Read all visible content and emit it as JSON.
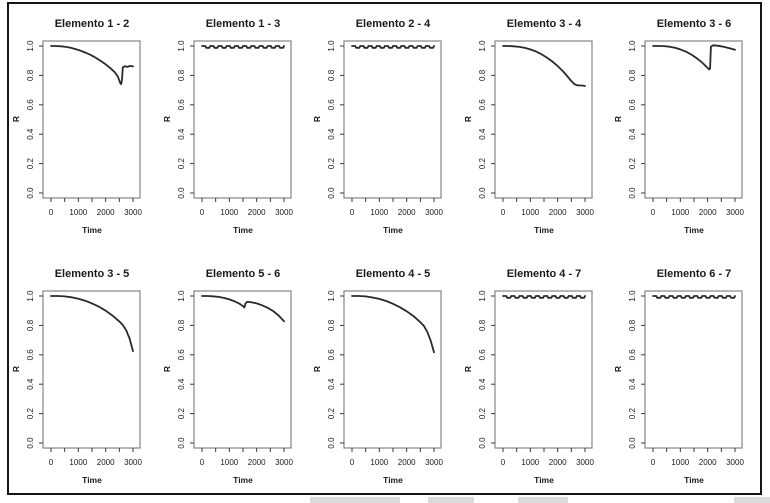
{
  "figure": {
    "background": "#ffffff",
    "frame_color": "#161616",
    "shadow_color": "#c9c9c9"
  },
  "chart_data": {
    "type": "line",
    "layout": {
      "rows": 2,
      "cols": 5
    },
    "xlabel": "Time",
    "ylabel": "R",
    "xlim": [
      0,
      3000
    ],
    "ylim": [
      0.0,
      1.0
    ],
    "xticks": [
      0,
      500,
      1000,
      1500,
      2000,
      2500,
      3000
    ],
    "xtick_labels": [
      "0",
      "",
      "1000",
      "",
      "2000",
      "",
      "3000"
    ],
    "yticks": [
      0.0,
      0.2,
      0.4,
      0.6,
      0.8,
      1.0
    ],
    "ytick_labels": [
      "0.0",
      "0.2",
      "0.4",
      "0.6",
      "0.8",
      "1.0"
    ],
    "grid": false,
    "legend": false,
    "line_color": "#2a2a2a",
    "box_color": "#858585",
    "tick_color": "#3a3a3a",
    "text_color": "#1a1a1a",
    "shared_series": {
      "flat": [
        [
          0,
          1.0
        ],
        [
          120,
          1.0
        ],
        [
          150,
          0.988
        ],
        [
          270,
          0.988
        ],
        [
          300,
          1.0
        ],
        [
          420,
          1.0
        ],
        [
          450,
          0.988
        ],
        [
          570,
          0.988
        ],
        [
          600,
          1.0
        ],
        [
          720,
          1.0
        ],
        [
          750,
          0.988
        ],
        [
          870,
          0.988
        ],
        [
          900,
          1.0
        ],
        [
          1020,
          1.0
        ],
        [
          1050,
          0.988
        ],
        [
          1170,
          0.988
        ],
        [
          1200,
          1.0
        ],
        [
          1320,
          1.0
        ],
        [
          1350,
          0.988
        ],
        [
          1470,
          0.988
        ],
        [
          1500,
          1.0
        ],
        [
          1620,
          1.0
        ],
        [
          1650,
          0.988
        ],
        [
          1770,
          0.988
        ],
        [
          1800,
          1.0
        ],
        [
          1920,
          1.0
        ],
        [
          1950,
          0.988
        ],
        [
          2070,
          0.988
        ],
        [
          2100,
          1.0
        ],
        [
          2220,
          1.0
        ],
        [
          2250,
          0.988
        ],
        [
          2370,
          0.988
        ],
        [
          2400,
          1.0
        ],
        [
          2520,
          1.0
        ],
        [
          2550,
          0.988
        ],
        [
          2670,
          0.988
        ],
        [
          2700,
          1.0
        ],
        [
          2820,
          1.0
        ],
        [
          2850,
          0.988
        ],
        [
          2970,
          0.988
        ],
        [
          3000,
          1.0
        ]
      ]
    },
    "panels": [
      {
        "title": "Elemento 1 - 2",
        "points": [
          [
            0,
            1.0
          ],
          [
            180,
            1.0
          ],
          [
            360,
            0.998
          ],
          [
            540,
            0.994
          ],
          [
            720,
            0.988
          ],
          [
            900,
            0.979
          ],
          [
            1080,
            0.968
          ],
          [
            1260,
            0.955
          ],
          [
            1440,
            0.94
          ],
          [
            1620,
            0.922
          ],
          [
            1800,
            0.901
          ],
          [
            1980,
            0.878
          ],
          [
            2160,
            0.852
          ],
          [
            2340,
            0.82
          ],
          [
            2450,
            0.79
          ],
          [
            2530,
            0.748
          ],
          [
            2570,
            0.74
          ],
          [
            2600,
            0.78
          ],
          [
            2625,
            0.855
          ],
          [
            2700,
            0.862
          ],
          [
            2790,
            0.858
          ],
          [
            2880,
            0.864
          ],
          [
            3000,
            0.862
          ]
        ]
      },
      {
        "title": "Elemento 1 - 3",
        "points": "flat"
      },
      {
        "title": "Elemento 2 - 4",
        "points": "flat"
      },
      {
        "title": "Elemento 3 - 4",
        "points": [
          [
            0,
            1.0
          ],
          [
            200,
            1.0
          ],
          [
            400,
            0.998
          ],
          [
            600,
            0.994
          ],
          [
            800,
            0.987
          ],
          [
            1000,
            0.977
          ],
          [
            1200,
            0.963
          ],
          [
            1400,
            0.945
          ],
          [
            1600,
            0.922
          ],
          [
            1800,
            0.895
          ],
          [
            2000,
            0.863
          ],
          [
            2200,
            0.827
          ],
          [
            2350,
            0.795
          ],
          [
            2500,
            0.762
          ],
          [
            2600,
            0.742
          ],
          [
            2700,
            0.733
          ],
          [
            2800,
            0.731
          ],
          [
            2900,
            0.731
          ],
          [
            3000,
            0.728
          ]
        ]
      },
      {
        "title": "Elemento 3 - 6",
        "points": [
          [
            0,
            1.0
          ],
          [
            200,
            1.0
          ],
          [
            400,
            0.999
          ],
          [
            600,
            0.995
          ],
          [
            800,
            0.988
          ],
          [
            1000,
            0.977
          ],
          [
            1200,
            0.962
          ],
          [
            1400,
            0.942
          ],
          [
            1600,
            0.917
          ],
          [
            1800,
            0.887
          ],
          [
            1950,
            0.86
          ],
          [
            2060,
            0.84
          ],
          [
            2090,
            0.85
          ],
          [
            2120,
            0.995
          ],
          [
            2200,
            1.005
          ],
          [
            2350,
            1.002
          ],
          [
            2500,
            0.998
          ],
          [
            2650,
            0.992
          ],
          [
            2800,
            0.985
          ],
          [
            3000,
            0.974
          ]
        ]
      },
      {
        "title": "Elemento 3 - 5",
        "points": [
          [
            0,
            1.0
          ],
          [
            250,
            1.0
          ],
          [
            500,
            0.997
          ],
          [
            750,
            0.991
          ],
          [
            1000,
            0.981
          ],
          [
            1250,
            0.968
          ],
          [
            1500,
            0.95
          ],
          [
            1750,
            0.928
          ],
          [
            2000,
            0.9
          ],
          [
            2250,
            0.867
          ],
          [
            2500,
            0.827
          ],
          [
            2625,
            0.803
          ],
          [
            2750,
            0.767
          ],
          [
            2875,
            0.71
          ],
          [
            3000,
            0.625
          ]
        ]
      },
      {
        "title": "Elemento 5 - 6",
        "points": [
          [
            0,
            1.0
          ],
          [
            200,
            1.0
          ],
          [
            400,
            0.998
          ],
          [
            600,
            0.994
          ],
          [
            800,
            0.987
          ],
          [
            1000,
            0.977
          ],
          [
            1200,
            0.963
          ],
          [
            1350,
            0.95
          ],
          [
            1480,
            0.934
          ],
          [
            1550,
            0.922
          ],
          [
            1590,
            0.95
          ],
          [
            1650,
            0.96
          ],
          [
            1800,
            0.958
          ],
          [
            2000,
            0.95
          ],
          [
            2200,
            0.937
          ],
          [
            2400,
            0.92
          ],
          [
            2600,
            0.898
          ],
          [
            2800,
            0.868
          ],
          [
            3000,
            0.828
          ]
        ]
      },
      {
        "title": "Elemento 4 - 5",
        "points": [
          [
            0,
            1.0
          ],
          [
            250,
            1.0
          ],
          [
            500,
            0.997
          ],
          [
            750,
            0.99
          ],
          [
            1000,
            0.98
          ],
          [
            1250,
            0.966
          ],
          [
            1500,
            0.947
          ],
          [
            1750,
            0.924
          ],
          [
            2000,
            0.896
          ],
          [
            2250,
            0.863
          ],
          [
            2500,
            0.822
          ],
          [
            2625,
            0.797
          ],
          [
            2750,
            0.757
          ],
          [
            2875,
            0.698
          ],
          [
            3000,
            0.617
          ]
        ]
      },
      {
        "title": "Elemento 4 - 7",
        "points": "flat"
      },
      {
        "title": "Elemento 6 - 7",
        "points": "flat"
      }
    ]
  },
  "shadows": [
    {
      "x": 310,
      "w": 90
    },
    {
      "x": 428,
      "w": 46
    },
    {
      "x": 518,
      "w": 50
    },
    {
      "x": 734,
      "w": 36
    }
  ]
}
